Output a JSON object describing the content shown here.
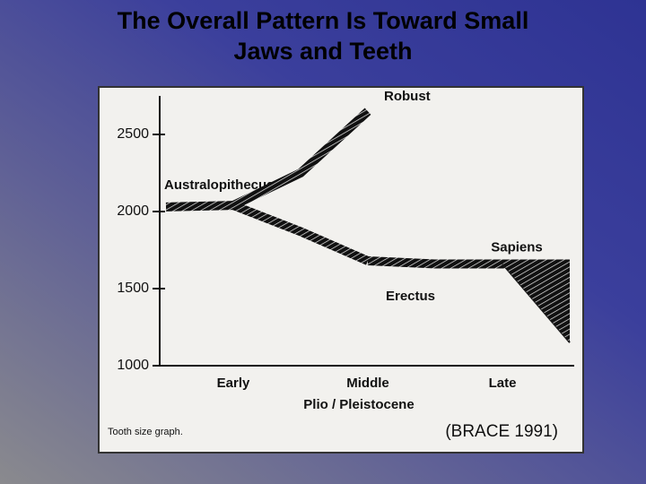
{
  "chart_data": {
    "type": "line",
    "title": "The Overall Pattern Is Toward Small Jaws and Teeth",
    "x_label": "Plio / Pleistocene",
    "caption": "Tooth size graph.",
    "source": "(BRACE 1991)",
    "categories": [
      null,
      "Early",
      null,
      "Middle",
      null,
      "Late",
      null
    ],
    "series": [
      {
        "name": "Australopithecus",
        "color": "#1a1a1a",
        "values": [
          2030,
          2040,
          null,
          null,
          null,
          null,
          null
        ]
      },
      {
        "name": "Robust",
        "color": "#1a1a1a",
        "values": [
          null,
          2040,
          2250,
          2650,
          null,
          null,
          null
        ]
      },
      {
        "name": "Erectus",
        "color": "#1a1a1a",
        "values": [
          null,
          2040,
          1870,
          1680,
          null,
          null,
          null
        ]
      },
      {
        "name": "Sapiens",
        "color": "#1a1a1a",
        "values": [
          null,
          null,
          null,
          1680,
          1660,
          1660,
          1660
        ]
      },
      {
        "color": "#1a1a1a",
        "values": [
          null,
          null,
          null,
          null,
          null,
          1660,
          1150
        ]
      }
    ],
    "ylim": [
      1000,
      2750
    ],
    "yticks": [
      1000,
      1500,
      2000,
      2500
    ],
    "grid": false
  }
}
